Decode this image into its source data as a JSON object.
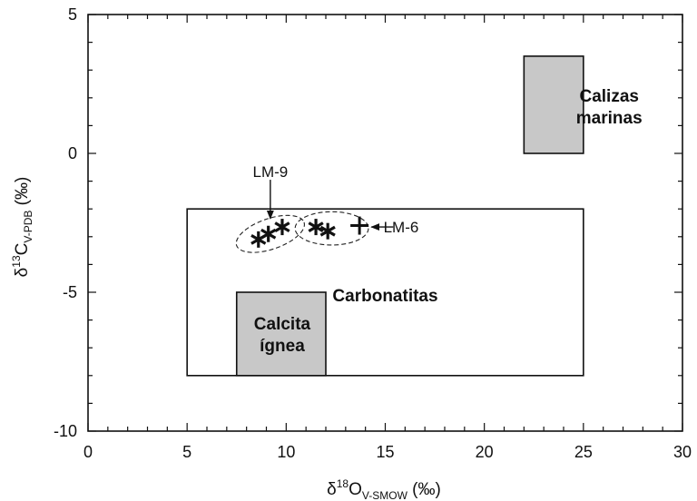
{
  "chart_data": {
    "type": "scatter",
    "x_axis": {
      "label_symbol": "δ",
      "label_sup": "18",
      "label_main": "O",
      "label_sub": "V-SMOW",
      "label_unit": " (‰)",
      "range": [
        0,
        30
      ],
      "major_ticks": [
        0,
        5,
        10,
        15,
        20,
        25,
        30
      ],
      "minor_step": 1
    },
    "y_axis": {
      "label_symbol": "δ",
      "label_sup": "13",
      "label_main": "C",
      "label_sub": "V-PDB",
      "label_unit": " (‰)",
      "range": [
        -10,
        5
      ],
      "major_ticks": [
        -10,
        -5,
        0,
        5
      ],
      "minor_step": 1
    },
    "grid": false,
    "legend": "none",
    "regions": [
      {
        "id": "carbonatitas",
        "label_lines": [
          "Carbonatitas"
        ],
        "x": [
          5,
          25
        ],
        "y": [
          -8,
          -2
        ],
        "fill": "#ffffff",
        "label_at": [
          15,
          -5.1
        ]
      },
      {
        "id": "calcita-ignea",
        "label_lines": [
          "Calcita",
          "ígnea"
        ],
        "x": [
          7.5,
          12
        ],
        "y": [
          -8,
          -5
        ],
        "fill": "#c8c8c8",
        "label_at": [
          9.8,
          -6.5
        ]
      },
      {
        "id": "calizas-marinas",
        "label_lines": [
          "Calizas",
          "marinas"
        ],
        "x": [
          22,
          25
        ],
        "y": [
          0,
          3.5
        ],
        "fill": "#c8c8c8",
        "label_at": [
          26.3,
          1.7
        ]
      }
    ],
    "series": [
      {
        "marker": "asterisk",
        "points": [
          {
            "x": 8.6,
            "y": -3.1
          },
          {
            "x": 9.1,
            "y": -2.9
          },
          {
            "x": 9.8,
            "y": -2.65
          },
          {
            "x": 11.5,
            "y": -2.65
          },
          {
            "x": 12.1,
            "y": -2.8
          }
        ]
      },
      {
        "marker": "plus",
        "points": [
          {
            "x": 13.7,
            "y": -2.6
          }
        ]
      }
    ],
    "groups": [
      {
        "cx": 9.2,
        "cy": -2.9,
        "rx": 1.8,
        "ry": 0.55,
        "angle_deg": -19
      },
      {
        "cx": 12.3,
        "cy": -2.7,
        "rx": 1.85,
        "ry": 0.6,
        "angle_deg": 0
      }
    ],
    "annotations": [
      {
        "text": "LM-9",
        "text_at": [
          9.2,
          -0.65
        ],
        "arrow_from": [
          9.2,
          -0.95
        ],
        "arrow_to": [
          9.2,
          -2.35
        ]
      },
      {
        "text": "LM-6",
        "text_at": [
          15.8,
          -2.65
        ],
        "arrow_from": [
          15.4,
          -2.65
        ],
        "arrow_to": [
          14.3,
          -2.65
        ]
      }
    ]
  }
}
